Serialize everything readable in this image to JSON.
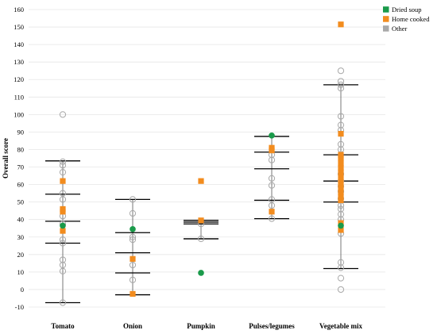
{
  "chart_data": {
    "type": "scatter",
    "title": "",
    "xlabel": "",
    "ylabel": "Overall score",
    "ylim": [
      -10,
      160
    ],
    "yticks": [
      -10,
      0,
      10,
      20,
      30,
      40,
      50,
      60,
      70,
      80,
      90,
      100,
      110,
      120,
      130,
      140,
      150,
      160
    ],
    "grid": true,
    "legend_position": "top-right",
    "categories": [
      "Tomato",
      "Onion",
      "Pumpkin",
      "Pulses/legumes",
      "Vegetable mix"
    ],
    "colors": {
      "Dried soup": "#1a9a4a",
      "Home cooked": "#f28c1e",
      "Other": "#a8a8a8",
      "whisker": "#000000",
      "grid": "#e6e6e6"
    },
    "series": [
      {
        "name": "Dried soup",
        "marker": "filled-circle",
        "points": [
          {
            "category": "Tomato",
            "y": 36.5
          },
          {
            "category": "Onion",
            "y": 34.5
          },
          {
            "category": "Pumpkin",
            "y": 9.5
          },
          {
            "category": "Pulses/legumes",
            "y": 88
          },
          {
            "category": "Vegetable mix",
            "y": 36.5
          }
        ]
      },
      {
        "name": "Home cooked",
        "marker": "filled-square",
        "points": [
          {
            "category": "Tomato",
            "y": 62
          },
          {
            "category": "Tomato",
            "y": 46
          },
          {
            "category": "Tomato",
            "y": 44.5
          },
          {
            "category": "Tomato",
            "y": 33.5
          },
          {
            "category": "Onion",
            "y": 17.5
          },
          {
            "category": "Onion",
            "y": -2.5
          },
          {
            "category": "Pumpkin",
            "y": 62
          },
          {
            "category": "Pumpkin",
            "y": 39.5
          },
          {
            "category": "Pulses/legumes",
            "y": 81
          },
          {
            "category": "Pulses/legumes",
            "y": 79.5
          },
          {
            "category": "Pulses/legumes",
            "y": 44.5
          },
          {
            "category": "Vegetable mix",
            "y": 151.5
          },
          {
            "category": "Vegetable mix",
            "y": 89
          },
          {
            "category": "Vegetable mix",
            "y": 77
          },
          {
            "category": "Vegetable mix",
            "y": 75
          },
          {
            "category": "Vegetable mix",
            "y": 72
          },
          {
            "category": "Vegetable mix",
            "y": 69.5
          },
          {
            "category": "Vegetable mix",
            "y": 67
          },
          {
            "category": "Vegetable mix",
            "y": 64
          },
          {
            "category": "Vegetable mix",
            "y": 61
          },
          {
            "category": "Vegetable mix",
            "y": 58
          },
          {
            "category": "Vegetable mix",
            "y": 55.5
          },
          {
            "category": "Vegetable mix",
            "y": 53
          },
          {
            "category": "Vegetable mix",
            "y": 51
          },
          {
            "category": "Vegetable mix",
            "y": 38
          },
          {
            "category": "Vegetable mix",
            "y": 34
          }
        ]
      },
      {
        "name": "Other",
        "marker": "open-circle",
        "points": [
          {
            "category": "Tomato",
            "y": 100
          },
          {
            "category": "Tomato",
            "y": 73
          },
          {
            "category": "Tomato",
            "y": 71
          },
          {
            "category": "Tomato",
            "y": 67
          },
          {
            "category": "Tomato",
            "y": 55
          },
          {
            "category": "Tomato",
            "y": 51.5
          },
          {
            "category": "Tomato",
            "y": 42
          },
          {
            "category": "Tomato",
            "y": 37.5
          },
          {
            "category": "Tomato",
            "y": 28.5
          },
          {
            "category": "Tomato",
            "y": 26.5
          },
          {
            "category": "Tomato",
            "y": 17
          },
          {
            "category": "Tomato",
            "y": 14
          },
          {
            "category": "Tomato",
            "y": 10.5
          },
          {
            "category": "Tomato",
            "y": -7.5
          },
          {
            "category": "Onion",
            "y": 51.5
          },
          {
            "category": "Onion",
            "y": 43.5
          },
          {
            "category": "Onion",
            "y": 30
          },
          {
            "category": "Onion",
            "y": 28.5
          },
          {
            "category": "Onion",
            "y": 14
          },
          {
            "category": "Onion",
            "y": 5.5
          },
          {
            "category": "Pumpkin",
            "y": 37.5
          },
          {
            "category": "Pumpkin",
            "y": 29
          },
          {
            "category": "Pulses/legumes",
            "y": 77
          },
          {
            "category": "Pulses/legumes",
            "y": 74
          },
          {
            "category": "Pulses/legumes",
            "y": 63.5
          },
          {
            "category": "Pulses/legumes",
            "y": 59.5
          },
          {
            "category": "Pulses/legumes",
            "y": 51.5
          },
          {
            "category": "Pulses/legumes",
            "y": 48
          },
          {
            "category": "Pulses/legumes",
            "y": 40.5
          },
          {
            "category": "Vegetable mix",
            "y": 125
          },
          {
            "category": "Vegetable mix",
            "y": 119
          },
          {
            "category": "Vegetable mix",
            "y": 117
          },
          {
            "category": "Vegetable mix",
            "y": 115
          },
          {
            "category": "Vegetable mix",
            "y": 99
          },
          {
            "category": "Vegetable mix",
            "y": 94
          },
          {
            "category": "Vegetable mix",
            "y": 91
          },
          {
            "category": "Vegetable mix",
            "y": 83
          },
          {
            "category": "Vegetable mix",
            "y": 80
          },
          {
            "category": "Vegetable mix",
            "y": 66
          },
          {
            "category": "Vegetable mix",
            "y": 62
          },
          {
            "category": "Vegetable mix",
            "y": 59
          },
          {
            "category": "Vegetable mix",
            "y": 56
          },
          {
            "category": "Vegetable mix",
            "y": 52
          },
          {
            "category": "Vegetable mix",
            "y": 48
          },
          {
            "category": "Vegetable mix",
            "y": 46
          },
          {
            "category": "Vegetable mix",
            "y": 43
          },
          {
            "category": "Vegetable mix",
            "y": 40
          },
          {
            "category": "Vegetable mix",
            "y": 32
          },
          {
            "category": "Vegetable mix",
            "y": 15.5
          },
          {
            "category": "Vegetable mix",
            "y": 12.5
          },
          {
            "category": "Vegetable mix",
            "y": 6.5
          },
          {
            "category": "Vegetable mix",
            "y": 0
          }
        ]
      }
    ],
    "summary_whiskers": [
      {
        "category": "Tomato",
        "min": -7.5,
        "q1": 26.5,
        "median": 39,
        "q3": 54.5,
        "max": 73.5
      },
      {
        "category": "Onion",
        "min": -3,
        "q1": 9.5,
        "median": 21,
        "q3": 32.5,
        "max": 51.5
      },
      {
        "category": "Pumpkin",
        "min": 29,
        "q1": 29,
        "median": 37.5,
        "q3": 38.5,
        "max": 39.5
      },
      {
        "category": "Pulses/legumes",
        "min": 40.5,
        "q1": 51,
        "median": 69,
        "q3": 78.5,
        "max": 87.5
      },
      {
        "category": "Vegetable mix",
        "min": 12,
        "q1": 50,
        "median": 62,
        "q3": 77,
        "max": 117
      }
    ]
  }
}
